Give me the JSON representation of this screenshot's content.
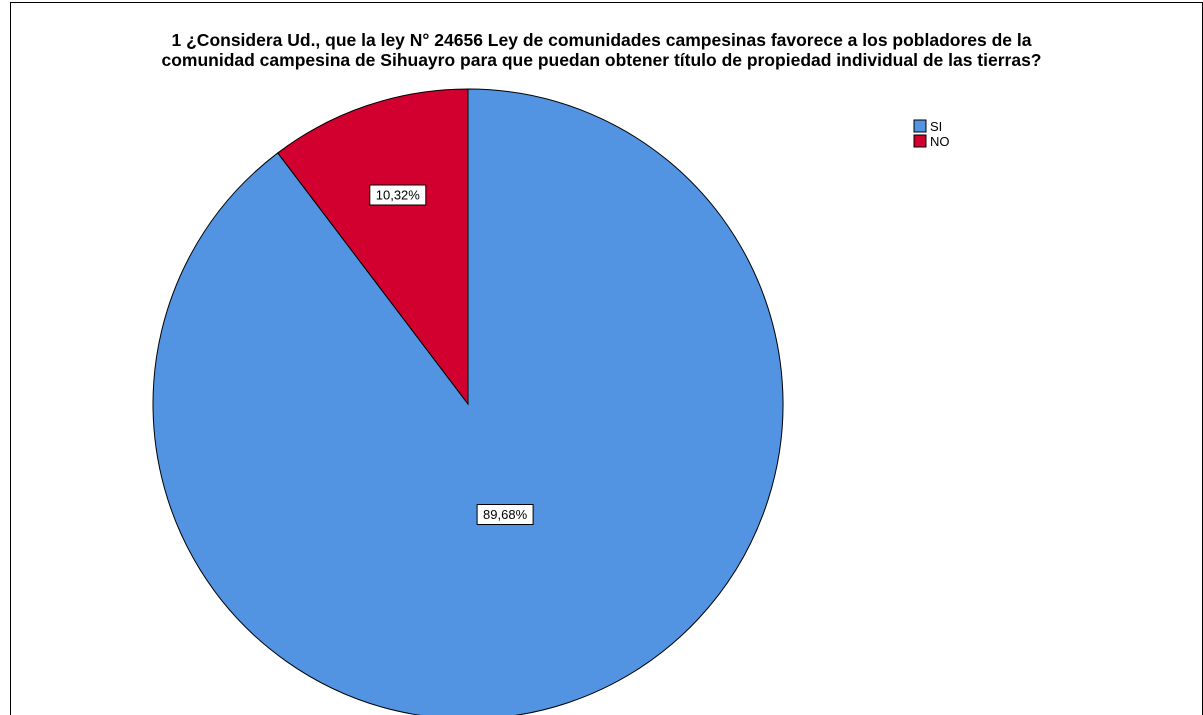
{
  "chart_data": {
    "type": "pie",
    "title_lines": [
      "1 ¿Considera Ud., que la ley N° 24656 Ley de comunidades campesinas favorece a los pobladores de la",
      "comunidad campesina de Sihuayro para que puedan obtener título de propiedad individual de las tierras?"
    ],
    "slices": [
      {
        "label": "SI",
        "value": 89.68,
        "data_label": "89,68%",
        "color": "#5294E2"
      },
      {
        "label": "NO",
        "value": 10.32,
        "data_label": "10,32%",
        "color": "#D2002E"
      }
    ],
    "start_angle_deg": 0,
    "direction": "clockwise",
    "legend_position": "top-right"
  }
}
